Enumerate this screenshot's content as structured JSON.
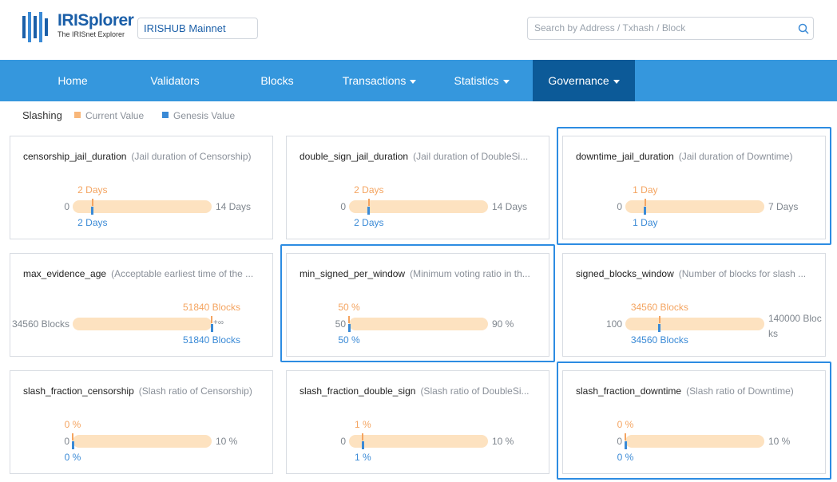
{
  "header": {
    "logo_title": "IRISplorer",
    "logo_subtitle": "The IRISnet Explorer",
    "network": "IRISHUB Mainnet",
    "search_placeholder": "Search by Address / Txhash / Block"
  },
  "nav": {
    "active": 5,
    "items": [
      {
        "label": "Home",
        "dropdown": false
      },
      {
        "label": "Validators",
        "dropdown": false
      },
      {
        "label": "Blocks",
        "dropdown": false
      },
      {
        "label": "Transactions",
        "dropdown": true
      },
      {
        "label": "Statistics",
        "dropdown": true
      },
      {
        "label": "Governance",
        "dropdown": true
      }
    ]
  },
  "legend": {
    "section": "Slashing",
    "current": "Current Value",
    "genesis": "Genesis Value"
  },
  "cards": [
    {
      "name": "censorship_jail_duration",
      "description": "(Jail duration of Censorship)",
      "highlighted": false,
      "min": {
        "value": 0,
        "label": "0"
      },
      "max": {
        "value": 14,
        "label": "14 Days"
      },
      "current": {
        "value": 2,
        "label": "2 Days"
      },
      "genesis": {
        "value": 2,
        "label": "2 Days"
      }
    },
    {
      "name": "double_sign_jail_duration",
      "description": "(Jail duration of DoubleSi...",
      "highlighted": false,
      "min": {
        "value": 0,
        "label": "0"
      },
      "max": {
        "value": 14,
        "label": "14 Days"
      },
      "current": {
        "value": 2,
        "label": "2 Days"
      },
      "genesis": {
        "value": 2,
        "label": "2 Days"
      }
    },
    {
      "name": "downtime_jail_duration",
      "description": "(Jail duration of Downtime)",
      "highlighted": true,
      "min": {
        "value": 0,
        "label": "0"
      },
      "max": {
        "value": 7,
        "label": "7 Days"
      },
      "current": {
        "value": 1,
        "label": "1 Day"
      },
      "genesis": {
        "value": 1,
        "label": "1 Day"
      }
    },
    {
      "name": "max_evidence_age",
      "description": "(Acceptable earliest time of the ...",
      "highlighted": false,
      "min": {
        "value": 34560,
        "label": "34560 Blocks"
      },
      "max": {
        "value": null,
        "label": "+∞"
      },
      "current": {
        "value": 51840,
        "label": "51840 Blocks"
      },
      "genesis": {
        "value": 51840,
        "label": "51840 Blocks"
      }
    },
    {
      "name": "min_signed_per_window",
      "description": "(Minimum voting ratio in th...",
      "highlighted": true,
      "min": {
        "value": 50,
        "label": "50"
      },
      "max": {
        "value": 90,
        "label": "90 %"
      },
      "current": {
        "value": 50,
        "label": "50 %"
      },
      "genesis": {
        "value": 50,
        "label": "50 %"
      }
    },
    {
      "name": "signed_blocks_window",
      "description": "(Number of blocks for slash ...",
      "highlighted": false,
      "min": {
        "value": 100,
        "label": "100"
      },
      "max": {
        "value": 140000,
        "label": "140000 Blocks"
      },
      "current": {
        "value": 34560,
        "label": "34560 Blocks"
      },
      "genesis": {
        "value": 34560,
        "label": "34560 Blocks"
      }
    },
    {
      "name": "slash_fraction_censorship",
      "description": "(Slash ratio of Censorship)",
      "highlighted": false,
      "min": {
        "value": 0,
        "label": "0"
      },
      "max": {
        "value": 10,
        "label": "10 %"
      },
      "current": {
        "value": 0,
        "label": "0 %"
      },
      "genesis": {
        "value": 0,
        "label": "0 %"
      }
    },
    {
      "name": "slash_fraction_double_sign",
      "description": "(Slash ratio of DoubleSi...",
      "highlighted": false,
      "min": {
        "value": 0,
        "label": "0"
      },
      "max": {
        "value": 10,
        "label": "10 %"
      },
      "current": {
        "value": 1,
        "label": "1 %"
      },
      "genesis": {
        "value": 1,
        "label": "1 %"
      }
    },
    {
      "name": "slash_fraction_downtime",
      "description": "(Slash ratio of Downtime)",
      "highlighted": true,
      "min": {
        "value": 0,
        "label": "0"
      },
      "max": {
        "value": 10,
        "label": "10 %"
      },
      "current": {
        "value": 0,
        "label": "0 %"
      },
      "genesis": {
        "value": 0,
        "label": "0 %"
      }
    }
  ]
}
